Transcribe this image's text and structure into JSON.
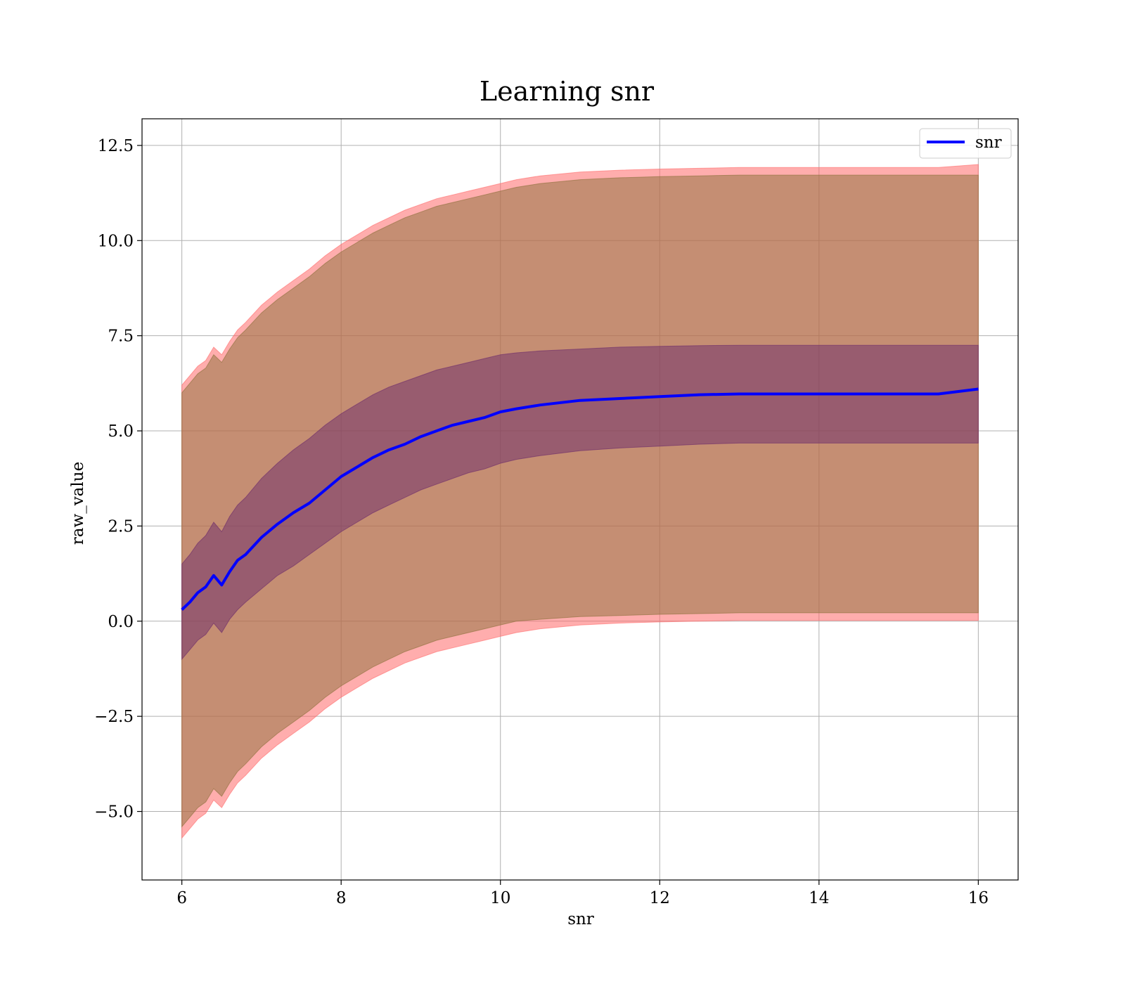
{
  "chart_data": {
    "type": "line",
    "title": "Learning snr",
    "xlabel": "snr",
    "ylabel": "raw_value",
    "xlim": [
      5.5,
      16.5
    ],
    "ylim": [
      -6.8,
      13.2
    ],
    "xticks": [
      6,
      8,
      10,
      12,
      14,
      16
    ],
    "xtick_labels": [
      "6",
      "8",
      "10",
      "12",
      "14",
      "16"
    ],
    "yticks": [
      -5.0,
      -2.5,
      0.0,
      2.5,
      5.0,
      7.5,
      10.0,
      12.5
    ],
    "ytick_labels": [
      "−5.0",
      "−2.5",
      "0.0",
      "2.5",
      "5.0",
      "7.5",
      "10.0",
      "12.5"
    ],
    "grid": true,
    "legend_position": "top-right",
    "series": [
      {
        "name": "snr",
        "color": "#0000ff",
        "x": [
          6.0,
          6.1,
          6.2,
          6.3,
          6.4,
          6.5,
          6.6,
          6.7,
          6.8,
          7.0,
          7.2,
          7.4,
          7.6,
          7.8,
          8.0,
          8.2,
          8.4,
          8.6,
          8.8,
          9.0,
          9.2,
          9.4,
          9.6,
          9.8,
          10.0,
          10.2,
          10.5,
          11.0,
          11.5,
          12.0,
          12.5,
          13.0,
          13.5,
          14.0,
          14.5,
          15.0,
          15.5,
          16.0
        ],
        "y": [
          0.3,
          0.5,
          0.75,
          0.9,
          1.2,
          0.95,
          1.3,
          1.6,
          1.75,
          2.2,
          2.55,
          2.85,
          3.1,
          3.45,
          3.8,
          4.05,
          4.3,
          4.5,
          4.65,
          4.85,
          5.0,
          5.15,
          5.25,
          5.35,
          5.5,
          5.58,
          5.68,
          5.8,
          5.85,
          5.9,
          5.95,
          5.97,
          5.97,
          5.97,
          5.97,
          5.97,
          5.97,
          6.1
        ]
      }
    ],
    "bands": [
      {
        "color": "#ff6a6a",
        "x": [
          6.0,
          6.1,
          6.2,
          6.3,
          6.4,
          6.5,
          6.6,
          6.7,
          6.8,
          7.0,
          7.2,
          7.4,
          7.6,
          7.8,
          8.0,
          8.2,
          8.4,
          8.6,
          8.8,
          9.0,
          9.2,
          9.4,
          9.6,
          9.8,
          10.0,
          10.2,
          10.5,
          11.0,
          11.5,
          12.0,
          12.5,
          13.0,
          13.5,
          14.0,
          14.5,
          15.0,
          15.5,
          16.0
        ],
        "upper": [
          6.2,
          6.45,
          6.7,
          6.85,
          7.2,
          7.0,
          7.35,
          7.65,
          7.85,
          8.3,
          8.65,
          8.95,
          9.25,
          9.6,
          9.9,
          10.15,
          10.4,
          10.6,
          10.8,
          10.95,
          11.1,
          11.2,
          11.3,
          11.4,
          11.5,
          11.6,
          11.7,
          11.8,
          11.85,
          11.88,
          11.9,
          11.92,
          11.92,
          11.92,
          11.92,
          11.92,
          11.92,
          12.0
        ],
        "lower": [
          -5.7,
          -5.45,
          -5.2,
          -5.05,
          -4.7,
          -4.9,
          -4.55,
          -4.25,
          -4.05,
          -3.6,
          -3.25,
          -2.95,
          -2.65,
          -2.3,
          -2.0,
          -1.75,
          -1.5,
          -1.3,
          -1.1,
          -0.95,
          -0.8,
          -0.7,
          -0.6,
          -0.5,
          -0.4,
          -0.3,
          -0.2,
          -0.1,
          -0.05,
          -0.02,
          0.0,
          0.02,
          0.02,
          0.02,
          0.02,
          0.02,
          0.02,
          0.02
        ]
      },
      {
        "color": "#8b6f3a",
        "x": [
          6.0,
          6.1,
          6.2,
          6.3,
          6.4,
          6.5,
          6.6,
          6.7,
          6.8,
          7.0,
          7.2,
          7.4,
          7.6,
          7.8,
          8.0,
          8.2,
          8.4,
          8.6,
          8.8,
          9.0,
          9.2,
          9.4,
          9.6,
          9.8,
          10.0,
          10.2,
          10.5,
          11.0,
          11.5,
          12.0,
          12.5,
          13.0,
          13.5,
          14.0,
          14.5,
          15.0,
          15.5,
          16.0
        ],
        "upper": [
          6.0,
          6.25,
          6.5,
          6.65,
          7.0,
          6.8,
          7.15,
          7.45,
          7.65,
          8.1,
          8.45,
          8.75,
          9.05,
          9.4,
          9.7,
          9.95,
          10.2,
          10.4,
          10.6,
          10.75,
          10.9,
          11.0,
          11.1,
          11.2,
          11.3,
          11.4,
          11.5,
          11.6,
          11.65,
          11.68,
          11.7,
          11.72,
          11.72,
          11.72,
          11.72,
          11.72,
          11.72,
          11.72
        ],
        "lower": [
          -5.4,
          -5.15,
          -4.9,
          -4.75,
          -4.4,
          -4.6,
          -4.25,
          -3.95,
          -3.75,
          -3.3,
          -2.95,
          -2.65,
          -2.35,
          -2.0,
          -1.7,
          -1.45,
          -1.2,
          -1.0,
          -0.8,
          -0.65,
          -0.5,
          -0.4,
          -0.3,
          -0.2,
          -0.1,
          0.0,
          0.05,
          0.12,
          0.15,
          0.18,
          0.2,
          0.22,
          0.22,
          0.22,
          0.22,
          0.22,
          0.22,
          0.22
        ]
      },
      {
        "color": "#6b2a6b",
        "x": [
          6.0,
          6.1,
          6.2,
          6.3,
          6.4,
          6.5,
          6.6,
          6.7,
          6.8,
          7.0,
          7.2,
          7.4,
          7.6,
          7.8,
          8.0,
          8.2,
          8.4,
          8.6,
          8.8,
          9.0,
          9.2,
          9.4,
          9.6,
          9.8,
          10.0,
          10.2,
          10.5,
          11.0,
          11.5,
          12.0,
          12.5,
          13.0,
          13.5,
          14.0,
          14.5,
          15.0,
          15.5,
          16.0
        ],
        "upper": [
          1.5,
          1.75,
          2.05,
          2.25,
          2.6,
          2.35,
          2.75,
          3.05,
          3.25,
          3.75,
          4.15,
          4.5,
          4.8,
          5.15,
          5.45,
          5.7,
          5.95,
          6.15,
          6.3,
          6.45,
          6.6,
          6.7,
          6.8,
          6.9,
          7.0,
          7.05,
          7.1,
          7.15,
          7.2,
          7.22,
          7.24,
          7.25,
          7.25,
          7.25,
          7.25,
          7.25,
          7.25,
          7.25
        ],
        "lower": [
          -1.0,
          -0.75,
          -0.5,
          -0.35,
          -0.05,
          -0.3,
          0.05,
          0.3,
          0.5,
          0.85,
          1.2,
          1.45,
          1.75,
          2.05,
          2.35,
          2.6,
          2.85,
          3.05,
          3.25,
          3.45,
          3.6,
          3.75,
          3.9,
          4.0,
          4.15,
          4.25,
          4.35,
          4.48,
          4.55,
          4.6,
          4.65,
          4.68,
          4.68,
          4.68,
          4.68,
          4.68,
          4.68,
          4.68
        ]
      }
    ]
  }
}
